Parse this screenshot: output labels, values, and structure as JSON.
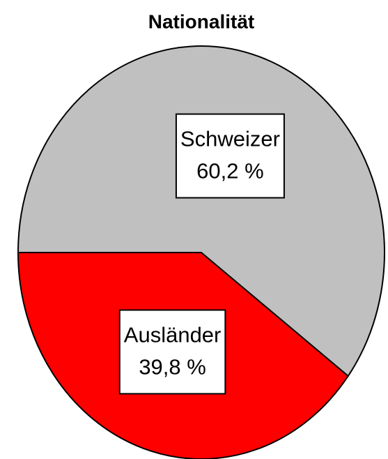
{
  "chart_data": {
    "type": "pie",
    "title": "Nationalität",
    "categories": [
      "Ausländer",
      "Schweizer"
    ],
    "values": [
      39.8,
      60.2
    ],
    "value_labels": [
      "39,8 %",
      "60,2 %"
    ],
    "colors": [
      "#ff0000",
      "#c0c0c0"
    ]
  }
}
